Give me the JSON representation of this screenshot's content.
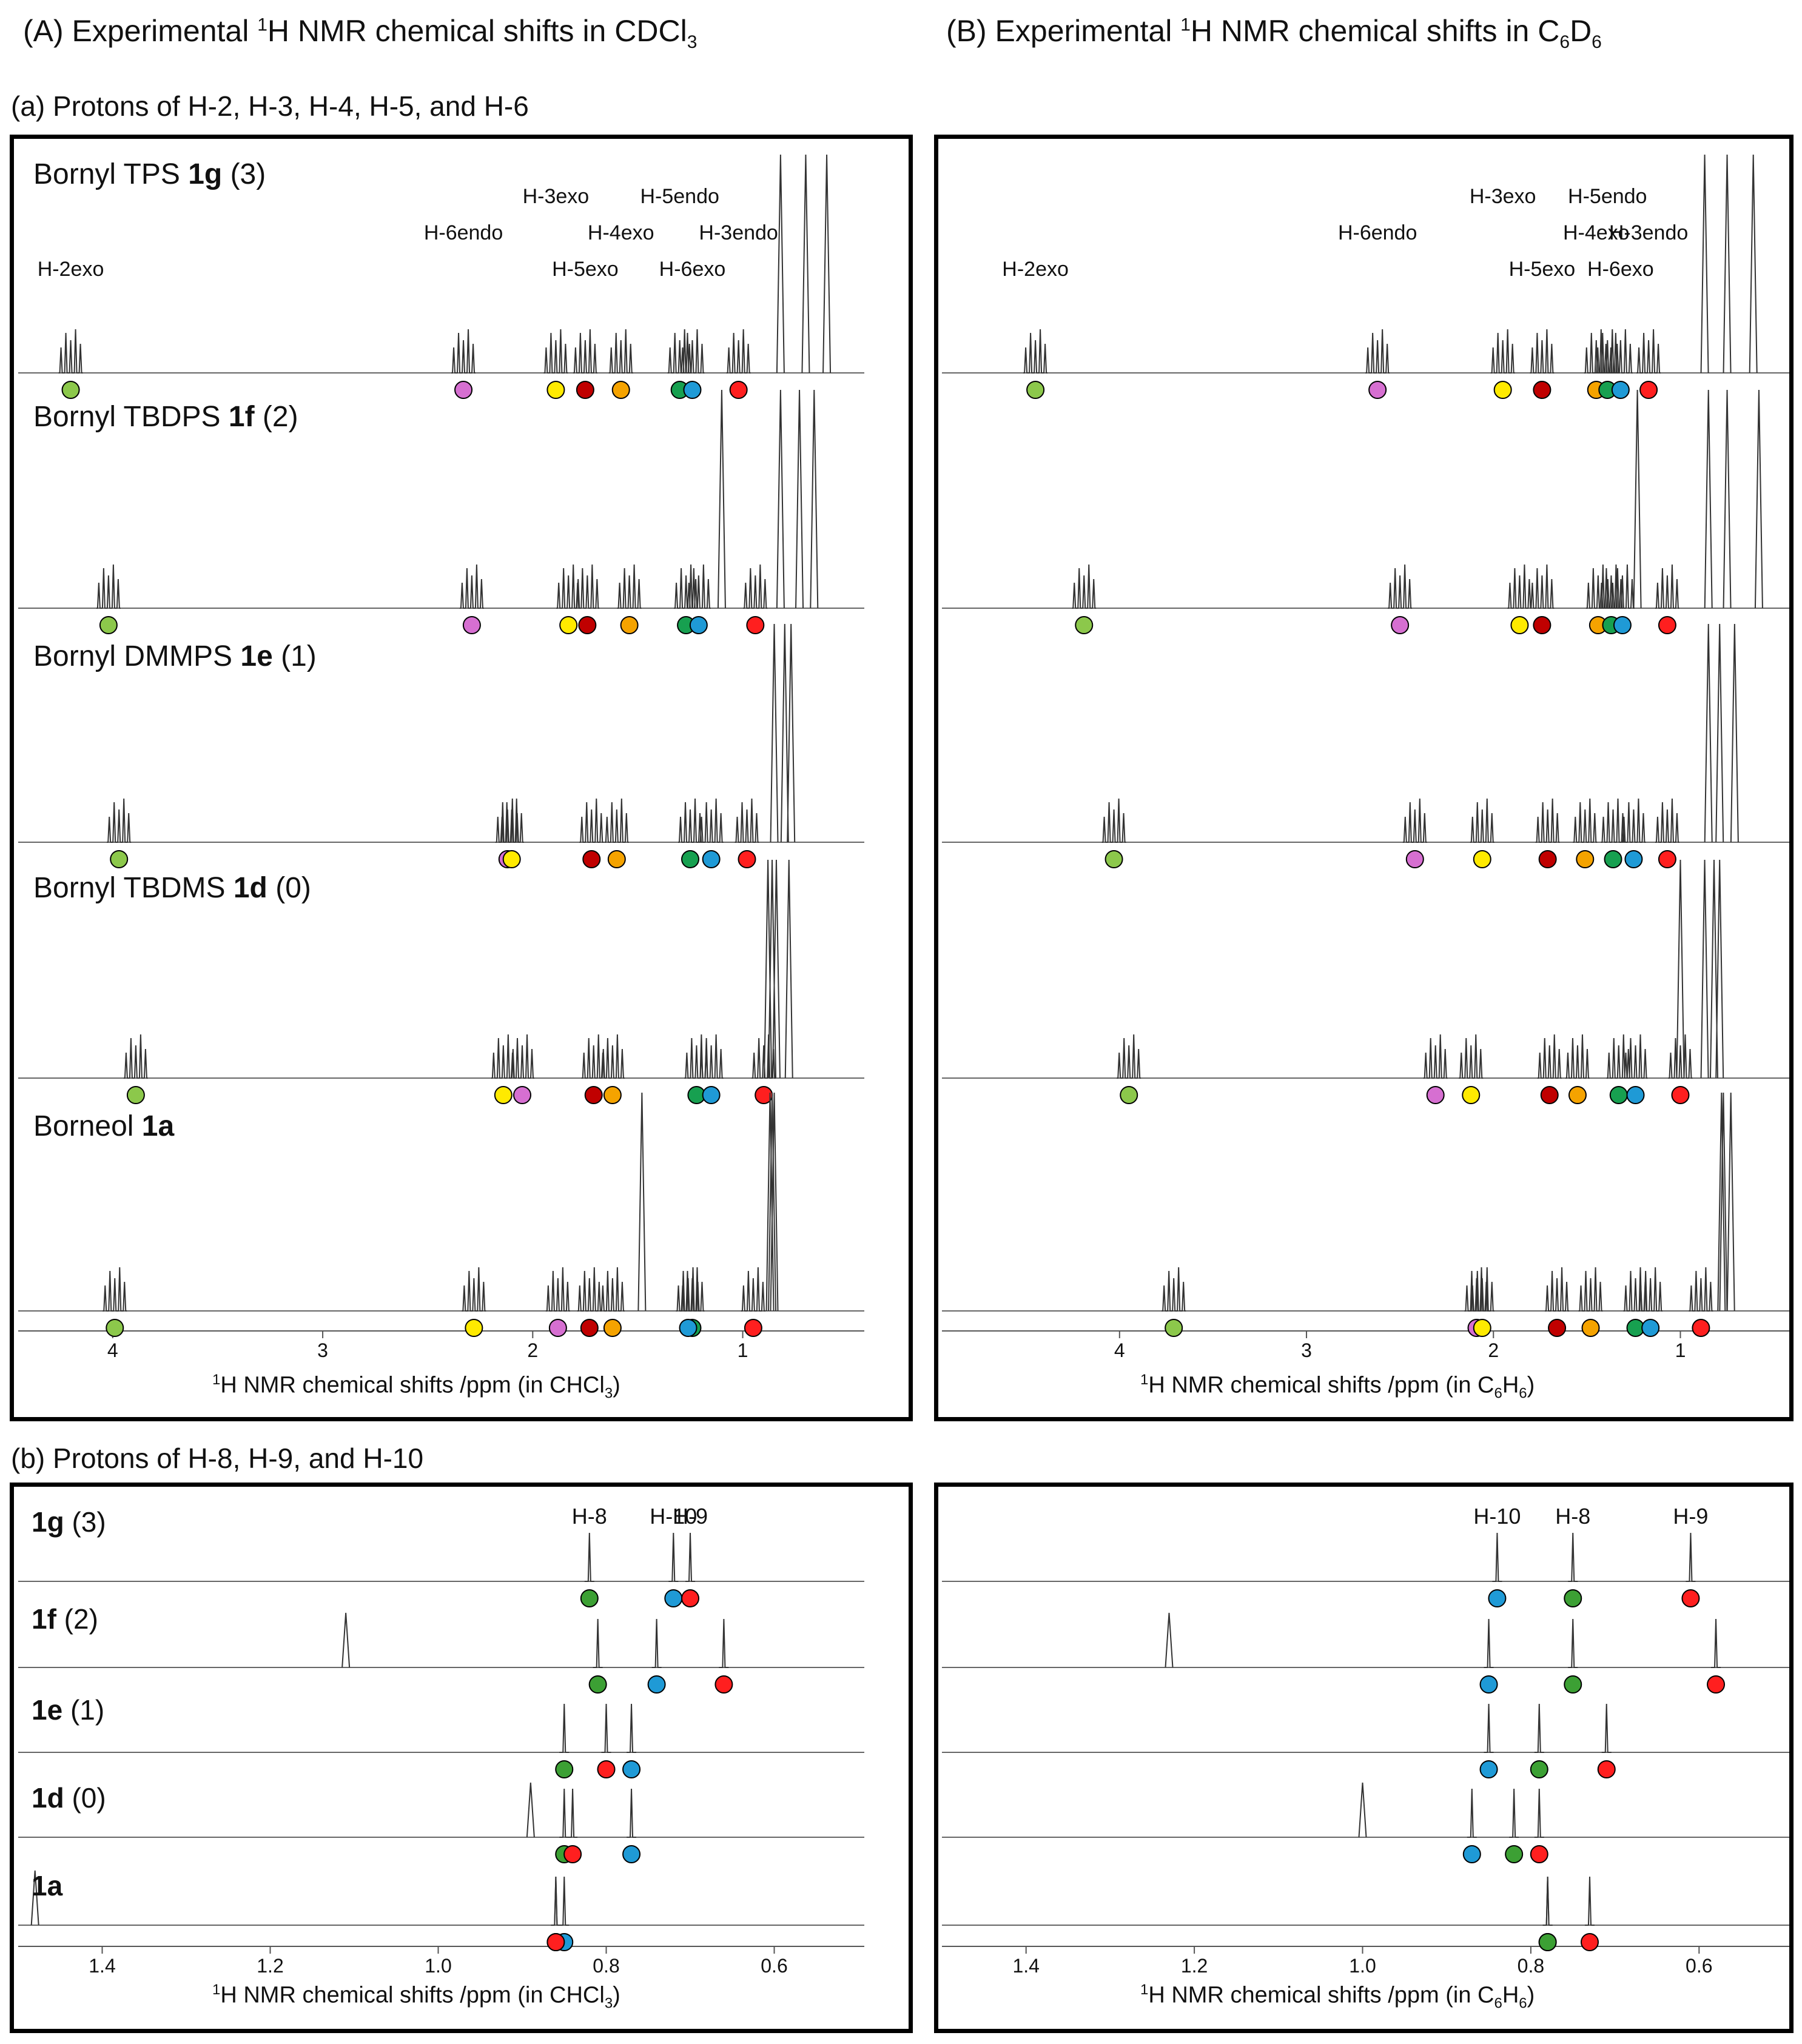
{
  "headings": {
    "A": {
      "prefix": "(A) Experimental ",
      "sup": "1",
      "suffix": "H NMR chemical shifts in CDCl",
      "sub": "3"
    },
    "B": {
      "prefix": "(B) Experimental ",
      "sup": "1",
      "suffix": "H NMR chemical shifts in C",
      "sub1": "6",
      "mid": "D",
      "sub2": "6"
    },
    "sa": "(a) Protons of H-2, H-3, H-4, H-5, and H-6",
    "sb": "(b) Protons of H-8, H-9, and H-10"
  },
  "xlabel_cdcl3": {
    "prefix": "1",
    "text": "H NMR chemical shifts /ppm (in CHCl",
    "sub": "3",
    "end": ")"
  },
  "xlabel_c6d6": {
    "prefix": "1",
    "text": "H NMR chemical shifts /ppm (in C",
    "sub1": "6",
    "mid": "H",
    "sub2": "6",
    "end": ")"
  },
  "colors": {
    "H-2exo": "#8cc84b",
    "H-6endo": "#d66fd1",
    "H-3exo": "#ffea00",
    "H-5exo": "#c00000",
    "H-4exo": "#f5a300",
    "H-5endo": "#17a050",
    "H-6exo": "#1f9ad6",
    "H-3endo": "#ff1f1f",
    "H-8": "#3ca034",
    "H-9": "#ff1f1f",
    "H-10": "#1f9ad6"
  },
  "chart_data": [
    {
      "type": "line",
      "title": "(a) Protons of H-2, H-3, H-4, H-5, and H-6 — CDCl3",
      "xlabel": "1H NMR chemical shifts /ppm (in CHCl3)",
      "xlim": [
        4.45,
        0.45
      ],
      "xticks": [
        "4",
        "3",
        "2",
        "1"
      ],
      "spectra": [
        {
          "label": "Bornyl TPS",
          "bold": "1g",
          "tail": "(3)",
          "protons": {
            "H-2exo": 4.2,
            "H-6endo": 2.33,
            "H-3exo": 1.89,
            "H-5exo": 1.75,
            "H-4exo": 1.58,
            "H-5endo": 1.3,
            "H-6exo": 1.24,
            "H-3endo": 1.02
          },
          "singlets": [
            0.82,
            0.7,
            0.6
          ],
          "annotations": [
            {
              "text": "H-2exo",
              "proton": "H-2exo"
            },
            {
              "text": "H-6endo",
              "proton": "H-6endo"
            },
            {
              "text": "H-3exo",
              "proton": "H-3exo"
            },
            {
              "text": "H-5exo",
              "proton": "H-5exo"
            },
            {
              "text": "H-4exo",
              "proton": "H-4exo"
            },
            {
              "text": "H-5endo",
              "proton": "H-5endo"
            },
            {
              "text": "H-6exo",
              "proton": "H-6exo"
            },
            {
              "text": "H-3endo",
              "proton": "H-3endo"
            }
          ]
        },
        {
          "label": "Bornyl TBDPS",
          "bold": "1f",
          "tail": "(2)",
          "protons": {
            "H-2exo": 4.02,
            "H-6endo": 2.29,
            "H-3exo": 1.83,
            "H-5exo": 1.74,
            "H-4exo": 1.54,
            "H-5endo": 1.27,
            "H-6exo": 1.21,
            "H-3endo": 0.94
          },
          "singlets": [
            1.1,
            0.82,
            0.73,
            0.66
          ],
          "annotations": []
        },
        {
          "label": "Bornyl DMMPS",
          "bold": "1e",
          "tail": "(1)",
          "protons": {
            "H-2exo": 3.97,
            "H-6endo": 2.12,
            "H-3exo": 2.1,
            "H-5exo": 1.72,
            "H-4exo": 1.6,
            "H-5endo": 1.25,
            "H-6exo": 1.15,
            "H-3endo": 0.98
          },
          "singlets": [
            0.85,
            0.8,
            0.77
          ],
          "annotations": []
        },
        {
          "label": "Bornyl TBDMS",
          "bold": "1d",
          "tail": "(0)",
          "protons": {
            "H-2exo": 3.89,
            "H-6endo": 2.05,
            "H-3exo": 2.14,
            "H-5exo": 1.71,
            "H-4exo": 1.62,
            "H-5endo": 1.22,
            "H-6exo": 1.15,
            "H-3endo": 0.9
          },
          "singlets": [
            0.88,
            0.86,
            0.84,
            0.78
          ],
          "annotations": []
        },
        {
          "label": "Borneol",
          "bold": "1a",
          "tail": "",
          "protons": {
            "H-2exo": 3.99,
            "H-6endo": 1.88,
            "H-3exo": 2.28,
            "H-5exo": 1.73,
            "H-4exo": 1.62,
            "H-5endo": 1.24,
            "H-6exo": 1.26,
            "H-3endo": 0.95
          },
          "singlets": [
            1.48,
            0.87,
            0.86,
            0.85
          ],
          "annotations": []
        }
      ]
    },
    {
      "type": "line",
      "title": "(a) Protons of H-2, H-3, H-4, H-5, and H-6 — C6D6",
      "xlabel": "1H NMR chemical shifts /ppm (in C6H6)",
      "xlim": [
        4.95,
        0.45
      ],
      "xticks": [
        "4",
        "3",
        "2",
        "1"
      ],
      "spectra": [
        {
          "label": "",
          "bold": "",
          "tail": "",
          "protons": {
            "H-2exo": 4.45,
            "H-6endo": 2.62,
            "H-3exo": 1.95,
            "H-5exo": 1.74,
            "H-4exo": 1.45,
            "H-5endo": 1.39,
            "H-6exo": 1.32,
            "H-3endo": 1.17
          },
          "singlets": [
            0.87,
            0.75,
            0.61
          ],
          "annotations": [
            {
              "text": "H-2exo",
              "proton": "H-2exo"
            },
            {
              "text": "H-6endo",
              "proton": "H-6endo"
            },
            {
              "text": "H-3exo",
              "proton": "H-3exo"
            },
            {
              "text": "H-5exo",
              "proton": "H-5exo"
            },
            {
              "text": "H-4exo",
              "proton": "H-4exo"
            },
            {
              "text": "H-5endo",
              "proton": "H-5endo"
            },
            {
              "text": "H-6exo",
              "proton": "H-6exo"
            },
            {
              "text": "H-3endo",
              "proton": "H-3endo"
            }
          ]
        },
        {
          "label": "",
          "bold": "",
          "tail": "",
          "protons": {
            "H-2exo": 4.19,
            "H-6endo": 2.5,
            "H-3exo": 1.86,
            "H-5exo": 1.74,
            "H-4exo": 1.44,
            "H-5endo": 1.37,
            "H-6exo": 1.31,
            "H-3endo": 1.07
          },
          "singlets": [
            1.23,
            0.85,
            0.75,
            0.58
          ],
          "annotations": []
        },
        {
          "label": "",
          "bold": "",
          "tail": "",
          "protons": {
            "H-2exo": 4.03,
            "H-6endo": 2.42,
            "H-3exo": 2.06,
            "H-5exo": 1.71,
            "H-4exo": 1.51,
            "H-5endo": 1.36,
            "H-6exo": 1.25,
            "H-3endo": 1.07
          },
          "singlets": [
            0.85,
            0.79,
            0.71
          ],
          "annotations": []
        },
        {
          "label": "",
          "bold": "",
          "tail": "",
          "protons": {
            "H-2exo": 3.95,
            "H-6endo": 2.31,
            "H-3exo": 2.12,
            "H-5exo": 1.7,
            "H-4exo": 1.55,
            "H-5endo": 1.33,
            "H-6exo": 1.24,
            "H-3endo": 1.0
          },
          "singlets": [
            1.0,
            0.87,
            0.82,
            0.79
          ],
          "annotations": []
        },
        {
          "label": "",
          "bold": "",
          "tail": "",
          "protons": {
            "H-2exo": 3.71,
            "H-6endo": 2.09,
            "H-3exo": 2.06,
            "H-5exo": 1.66,
            "H-4exo": 1.48,
            "H-5endo": 1.24,
            "H-6exo": 1.16,
            "H-3endo": 0.89
          },
          "singlets": [
            0.78,
            0.77,
            0.73
          ],
          "annotations": []
        }
      ]
    },
    {
      "type": "line",
      "title": "(b) Protons of H-8, H-9, and H-10 — CDCl3",
      "xlabel": "1H NMR chemical shifts /ppm (in CHCl3)",
      "xlim": [
        1.5,
        0.5
      ],
      "xticks": [
        "1.4",
        "1.2",
        "1.0",
        "0.8",
        "0.6"
      ],
      "spectra": [
        {
          "label": "",
          "bold": "1g",
          "tail": "(3)",
          "protons": {
            "H-8": 0.82,
            "H-10": 0.72,
            "H-9": 0.7
          },
          "singlets": [],
          "annotations": [
            {
              "text": "H-8",
              "proton": "H-8"
            },
            {
              "text": "H-10",
              "proton": "H-10"
            },
            {
              "text": "H-9",
              "proton": "H-9"
            }
          ]
        },
        {
          "label": "",
          "bold": "1f",
          "tail": "(2)",
          "protons": {
            "H-8": 0.81,
            "H-10": 0.74,
            "H-9": 0.66
          },
          "singlets": [
            1.11
          ],
          "annotations": []
        },
        {
          "label": "",
          "bold": "1e",
          "tail": "(1)",
          "protons": {
            "H-8": 0.85,
            "H-10": 0.77,
            "H-9": 0.8
          },
          "singlets": [],
          "annotations": []
        },
        {
          "label": "",
          "bold": "1d",
          "tail": "(0)",
          "protons": {
            "H-8": 0.85,
            "H-10": 0.77,
            "H-9": 0.84
          },
          "singlets": [
            0.89
          ],
          "annotations": []
        },
        {
          "label": "",
          "bold": "1a",
          "tail": "",
          "protons": {
            "H-8": 0.86,
            "H-10": 0.85,
            "H-9": 0.86
          },
          "singlets": [
            1.48
          ],
          "annotations": []
        }
      ]
    },
    {
      "type": "line",
      "title": "(b) Protons of H-8, H-9, and H-10 — C6D6",
      "xlabel": "1H NMR chemical shifts /ppm (in C6H6)",
      "xlim": [
        1.5,
        0.5
      ],
      "xticks": [
        "1.4",
        "1.2",
        "1.0",
        "0.8",
        "0.6"
      ],
      "spectra": [
        {
          "label": "",
          "bold": "",
          "tail": "",
          "protons": {
            "H-10": 0.84,
            "H-8": 0.75,
            "H-9": 0.61
          },
          "singlets": [],
          "annotations": [
            {
              "text": "H-10",
              "proton": "H-10"
            },
            {
              "text": "H-8",
              "proton": "H-8"
            },
            {
              "text": "H-9",
              "proton": "H-9"
            }
          ]
        },
        {
          "label": "",
          "bold": "",
          "tail": "",
          "protons": {
            "H-10": 0.85,
            "H-8": 0.75,
            "H-9": 0.58
          },
          "singlets": [
            1.23
          ],
          "annotations": []
        },
        {
          "label": "",
          "bold": "",
          "tail": "",
          "protons": {
            "H-10": 0.85,
            "H-8": 0.79,
            "H-9": 0.71
          },
          "singlets": [],
          "annotations": []
        },
        {
          "label": "",
          "bold": "",
          "tail": "",
          "protons": {
            "H-10": 0.87,
            "H-8": 0.82,
            "H-9": 0.79
          },
          "singlets": [
            1.0
          ],
          "annotations": []
        },
        {
          "label": "",
          "bold": "",
          "tail": "",
          "protons": {
            "H-10": 0.78,
            "H-8": 0.78,
            "H-9": 0.73
          },
          "singlets": [],
          "annotations": []
        }
      ]
    }
  ]
}
